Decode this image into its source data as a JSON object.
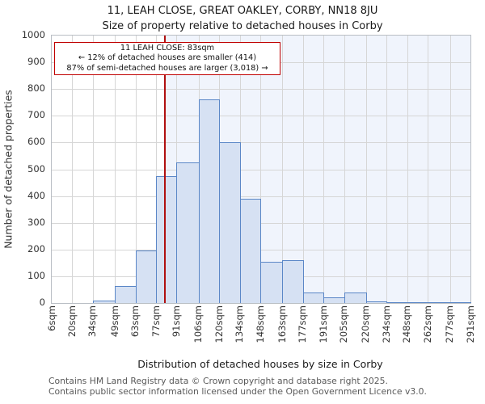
{
  "title": "11, LEAH CLOSE, GREAT OAKLEY, CORBY, NN18 8JU",
  "subtitle": "Size of property relative to detached houses in Corby",
  "annotation": {
    "line1": "11 LEAH CLOSE: 83sqm",
    "line2": "← 12% of detached houses are smaller (414)",
    "line3": "87% of semi-detached houses are larger (3,018) →"
  },
  "chart_data": {
    "type": "bar",
    "title": "Size of property relative to detached houses in Corby",
    "xlabel": "Distribution of detached houses by size in Corby",
    "ylabel": "Number of detached properties",
    "ylim": [
      0,
      1000
    ],
    "ytick_step": 100,
    "grid": true,
    "bin_edges_sqm": [
      6,
      20,
      34,
      49,
      63,
      77,
      91,
      106,
      120,
      134,
      148,
      163,
      177,
      191,
      205,
      220,
      234,
      248,
      262,
      277,
      291
    ],
    "x_tick_labels": [
      "6sqm",
      "20sqm",
      "34sqm",
      "49sqm",
      "63sqm",
      "77sqm",
      "91sqm",
      "106sqm",
      "120sqm",
      "134sqm",
      "148sqm",
      "163sqm",
      "177sqm",
      "191sqm",
      "205sqm",
      "220sqm",
      "234sqm",
      "248sqm",
      "262sqm",
      "277sqm",
      "291sqm"
    ],
    "values": [
      0,
      0,
      8,
      62,
      195,
      475,
      525,
      760,
      600,
      390,
      155,
      160,
      40,
      20,
      40,
      5,
      2,
      2,
      2,
      2
    ],
    "marker_value_sqm": 83,
    "shaded_region": "right_of_marker",
    "colors": {
      "bar_fill": "#d6e1f3",
      "bar_edge": "#5b87c7",
      "marker_line": "#b01010",
      "callout_border": "#c00000",
      "shade": "#f0f4fc",
      "grid": "#d6d6d6"
    }
  },
  "footer": {
    "line1": "Contains HM Land Registry data © Crown copyright and database right 2025.",
    "line2": "Contains public sector information licensed under the Open Government Licence v3.0."
  }
}
